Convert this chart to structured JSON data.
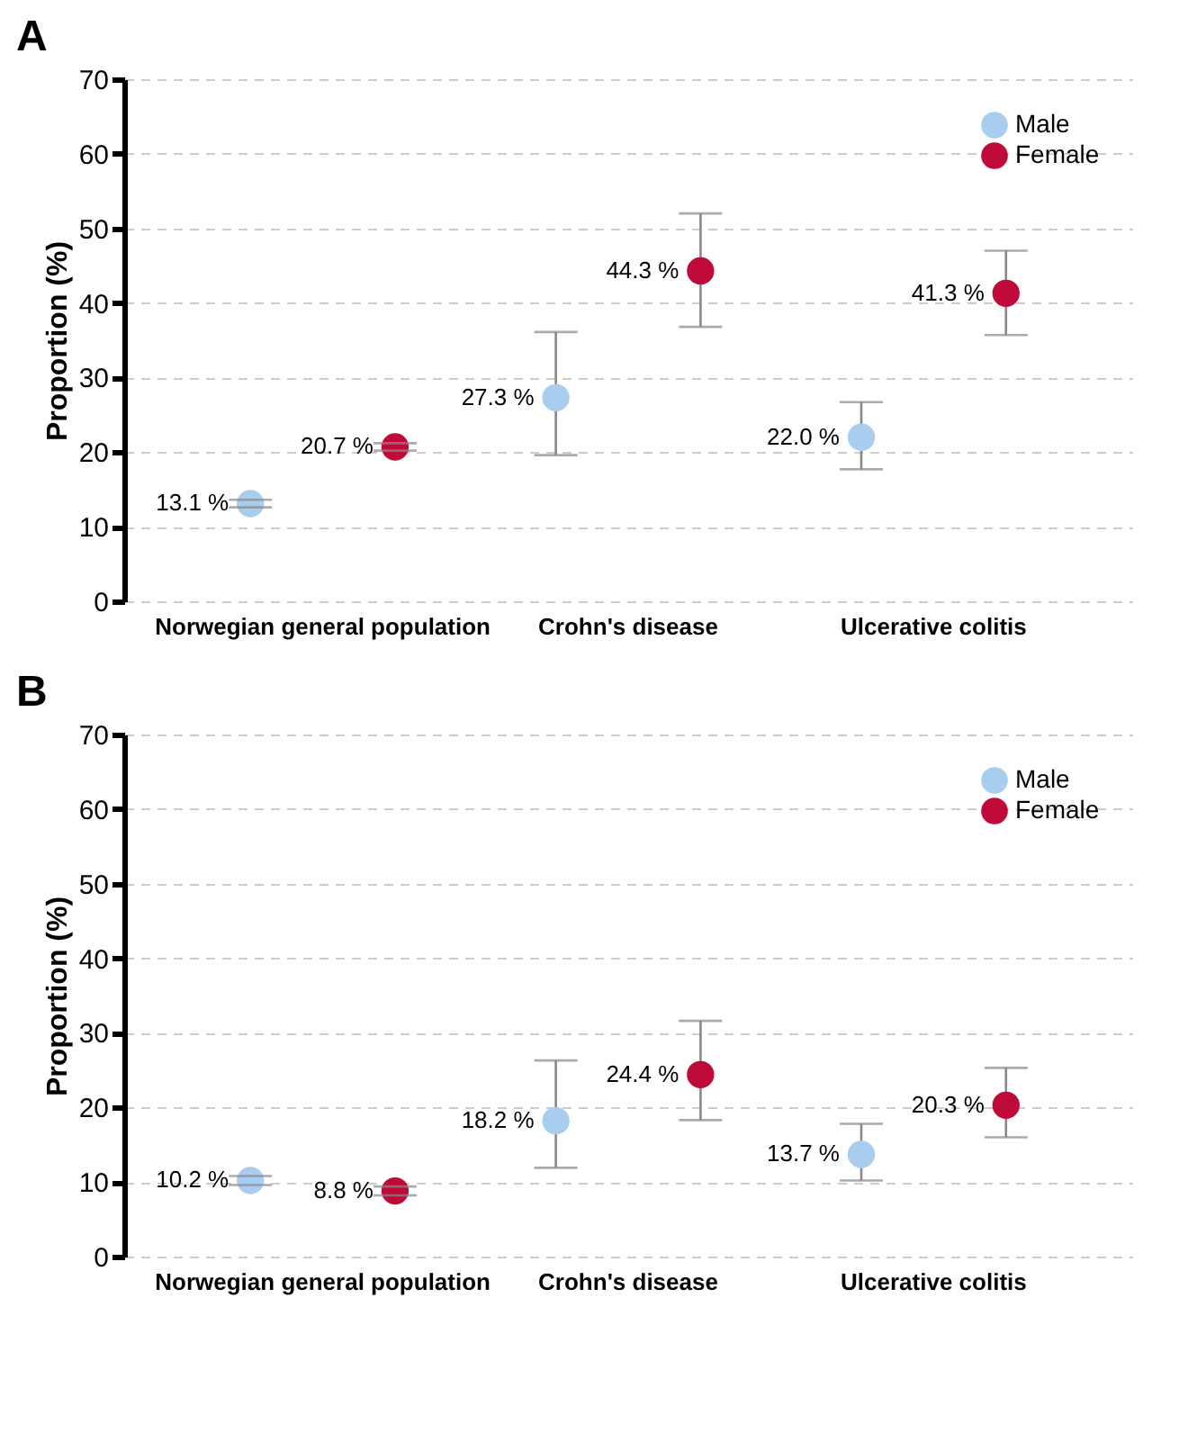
{
  "chart_data": [
    {
      "type": "scatter",
      "title": "A",
      "ylabel": "Proportion (%)",
      "categories": [
        "Norwegian general population",
        "Crohn's disease",
        "Ulcerative colitis"
      ],
      "ylim": [
        0,
        70
      ],
      "yticks": [
        0,
        10,
        20,
        30,
        40,
        50,
        60,
        70
      ],
      "grid": "y",
      "legend": "top right",
      "marker": "circle",
      "series": [
        {
          "name": "Male",
          "color": "#a8cdef",
          "values": [
            13.1,
            27.3,
            22.0
          ],
          "errors": [
            [
              12.6,
              13.6
            ],
            [
              19.6,
              36.1
            ],
            [
              17.7,
              26.7
            ]
          ],
          "value_labels": [
            "13.1 %",
            "27.3 %",
            "22.0 %"
          ]
        },
        {
          "name": "Female",
          "color": "#be0b3a",
          "values": [
            20.7,
            44.3,
            41.3
          ],
          "errors": [
            [
              20.2,
              21.2
            ],
            [
              36.8,
              52.0
            ],
            [
              35.7,
              47.0
            ]
          ],
          "value_labels": [
            "20.7 %",
            "44.3 %",
            "41.3 %"
          ]
        }
      ]
    },
    {
      "type": "scatter",
      "title": "B",
      "ylabel": "Proportion (%)",
      "categories": [
        "Norwegian general population",
        "Crohn's disease",
        "Ulcerative colitis"
      ],
      "ylim": [
        0,
        70
      ],
      "yticks": [
        0,
        10,
        20,
        30,
        40,
        50,
        60,
        70
      ],
      "grid": "y",
      "legend": "top right",
      "marker": "circle",
      "series": [
        {
          "name": "Male",
          "color": "#a8cdef",
          "values": [
            10.2,
            18.2,
            13.7
          ],
          "errors": [
            [
              9.6,
              10.8
            ],
            [
              11.9,
              26.3
            ],
            [
              10.2,
              17.8
            ]
          ],
          "value_labels": [
            "10.2 %",
            "18.2 %",
            "13.7 %"
          ]
        },
        {
          "name": "Female",
          "color": "#be0b3a",
          "values": [
            8.8,
            24.4,
            20.3
          ],
          "errors": [
            [
              8.2,
              9.4
            ],
            [
              18.3,
              31.6
            ],
            [
              16.0,
              25.3
            ]
          ],
          "value_labels": [
            "8.8 %",
            "24.4 %",
            "20.3 %"
          ]
        }
      ]
    }
  ]
}
